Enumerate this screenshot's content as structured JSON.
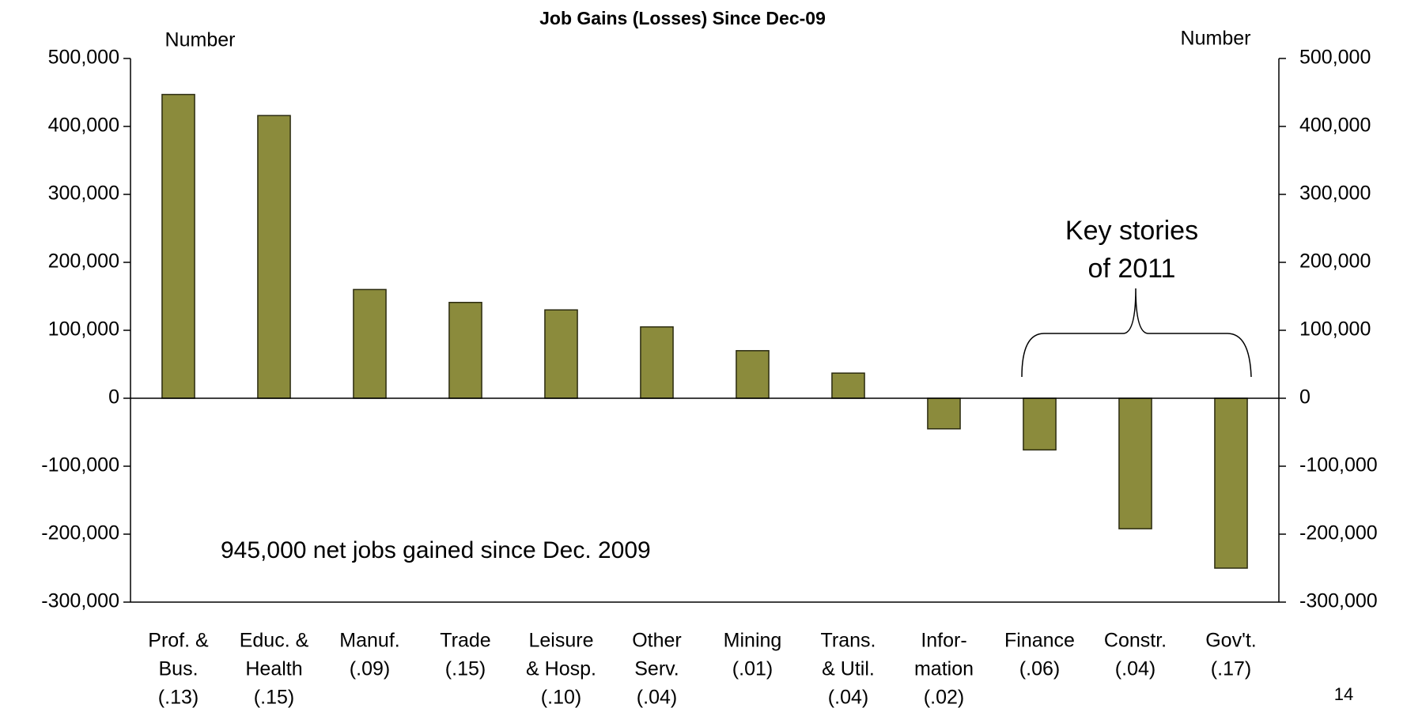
{
  "chart_data": {
    "type": "bar",
    "title": "Job Gains (Losses) Since Dec-09",
    "y_label": "Number",
    "y2_label": "Number",
    "categories": [
      [
        "Prof. &",
        "Bus.",
        "(.13)"
      ],
      [
        "Educ. &",
        "Health",
        "(.15)"
      ],
      [
        "Manuf.",
        "(.09)"
      ],
      [
        "Trade",
        "(.15)"
      ],
      [
        "Leisure",
        "& Hosp.",
        "(.10)"
      ],
      [
        "Other",
        "Serv.",
        "(.04)"
      ],
      [
        "Mining",
        "(.01)"
      ],
      [
        "Trans.",
        "& Util.",
        "(.04)"
      ],
      [
        "Infor-",
        "mation",
        "(.02)"
      ],
      [
        "Finance",
        "(.06)"
      ],
      [
        "Constr.",
        "(.04)"
      ],
      [
        "Gov't.",
        "(.17)"
      ]
    ],
    "values": [
      447000,
      416000,
      160000,
      141000,
      130000,
      105000,
      70000,
      37000,
      -45000,
      -76000,
      -192000,
      -250000
    ],
    "color": "#8b8b3c",
    "ylim": [
      -300000,
      500000
    ],
    "yticks": [
      {
        "value": -300000,
        "label": "-300,000"
      },
      {
        "value": -200000,
        "label": "-200,000"
      },
      {
        "value": -100000,
        "label": "-100,000"
      },
      0,
      {
        "value": 100000,
        "label": "100,000"
      },
      {
        "value": 200000,
        "label": "200,000"
      },
      {
        "value": 300000,
        "label": "300,000"
      },
      {
        "value": 400000,
        "label": "400,000"
      },
      {
        "value": 500000,
        "label": "500,000"
      }
    ],
    "y2lim": [
      -300000,
      500000
    ],
    "y2ticks": [
      {
        "value": -300000,
        "label": "-300,000"
      },
      {
        "value": -200000,
        "label": "-200,000"
      },
      {
        "value": -100000,
        "label": "-100,000"
      },
      0,
      {
        "value": 100000,
        "label": "100,000"
      },
      {
        "value": 200000,
        "label": "200,000"
      },
      {
        "value": 300000,
        "label": "300,000"
      },
      {
        "value": 400000,
        "label": "400,000"
      },
      {
        "value": 500000,
        "label": "500,000"
      }
    ],
    "grid": false,
    "annotations": [
      "945,000 net jobs gained since Dec. 2009",
      [
        "Key stories",
        "of 2011"
      ]
    ],
    "page_number": "14"
  }
}
